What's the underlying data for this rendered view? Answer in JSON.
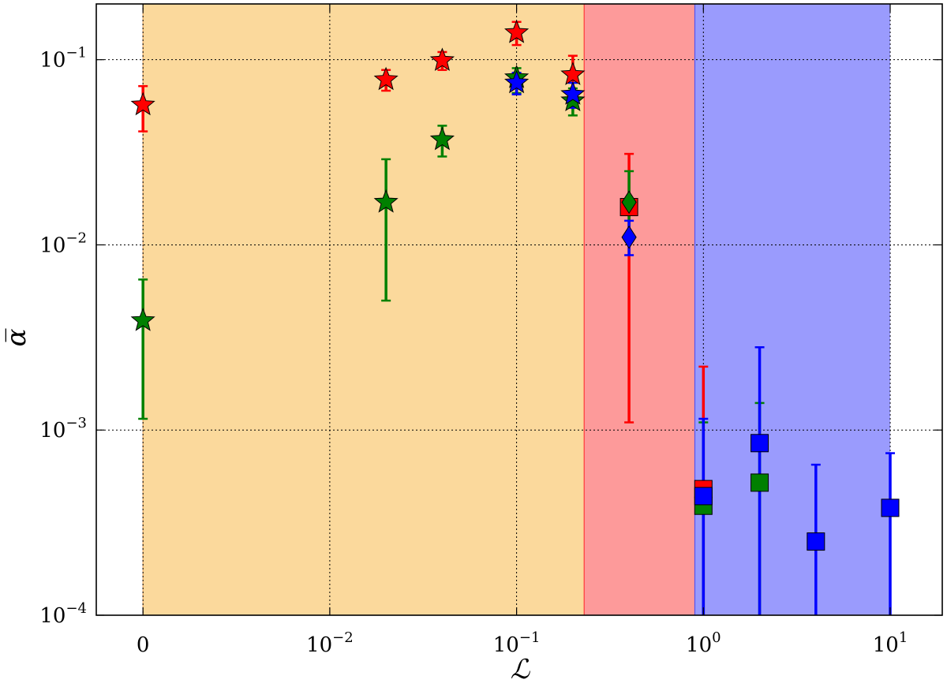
{
  "chart_data": {
    "type": "scatter",
    "title": "",
    "xlabel": "ℒ",
    "ylabel": "α̅",
    "x_scale": "symlog",
    "y_scale": "log",
    "xlim": [
      -0.0025,
      19
    ],
    "ylim": [
      0.0001,
      0.2
    ],
    "grid": true,
    "x_ticks": [
      {
        "value": 0,
        "label": "0",
        "exp": ""
      },
      {
        "value": 0.01,
        "label": "10",
        "exp": "−2"
      },
      {
        "value": 0.1,
        "label": "10",
        "exp": "−1"
      },
      {
        "value": 1,
        "label": "10",
        "exp": "0"
      },
      {
        "value": 10,
        "label": "10",
        "exp": "1"
      }
    ],
    "y_ticks": [
      {
        "value": 0.0001,
        "label": "10",
        "exp": "−4"
      },
      {
        "value": 0.001,
        "label": "10",
        "exp": "−3"
      },
      {
        "value": 0.01,
        "label": "10",
        "exp": "−2"
      },
      {
        "value": 0.1,
        "label": "10",
        "exp": "−1"
      }
    ],
    "regions": [
      {
        "from": 0,
        "to": 0.23,
        "color": "#fbd99c",
        "border": "#e8a860"
      },
      {
        "from": 0.23,
        "to": 0.9,
        "color": "#fd9a9a",
        "border": "#ff3a3a"
      },
      {
        "from": 0.9,
        "to": 10,
        "color": "#9a9bfd",
        "border": "#5555ee"
      }
    ],
    "series": [
      {
        "color": "#ff0000",
        "points": [
          {
            "x": 0,
            "y": 0.057,
            "lo": 0.041,
            "hi": 0.072,
            "marker": "star"
          },
          {
            "x": 0.02,
            "y": 0.078,
            "lo": 0.068,
            "hi": 0.088,
            "marker": "star"
          },
          {
            "x": 0.04,
            "y": 0.099,
            "lo": 0.088,
            "hi": 0.11,
            "marker": "star"
          },
          {
            "x": 0.1,
            "y": 0.14,
            "lo": 0.12,
            "hi": 0.16,
            "marker": "star"
          },
          {
            "x": 0.2,
            "y": 0.083,
            "lo": 0.065,
            "hi": 0.105,
            "marker": "star"
          },
          {
            "x": 0.4,
            "y": 0.016,
            "lo": 0.0011,
            "hi": 0.031,
            "marker": "square"
          },
          {
            "x": 1,
            "y": 0.00048,
            "lo": 0.0001,
            "hi": 0.0022,
            "marker": "square"
          }
        ]
      },
      {
        "color": "#008000",
        "points": [
          {
            "x": 0,
            "y": 0.0039,
            "lo": 0.00115,
            "hi": 0.0065,
            "marker": "star"
          },
          {
            "x": 0.02,
            "y": 0.017,
            "lo": 0.005,
            "hi": 0.029,
            "marker": "star"
          },
          {
            "x": 0.04,
            "y": 0.037,
            "lo": 0.03,
            "hi": 0.044,
            "marker": "star"
          },
          {
            "x": 0.1,
            "y": 0.08,
            "lo": 0.066,
            "hi": 0.09,
            "marker": "star"
          },
          {
            "x": 0.2,
            "y": 0.06,
            "lo": 0.05,
            "hi": 0.07,
            "marker": "star"
          },
          {
            "x": 0.4,
            "y": 0.017,
            "lo": 0.0105,
            "hi": 0.025,
            "marker": "diamond"
          },
          {
            "x": 1,
            "y": 0.00039,
            "lo": 0.0001,
            "hi": 0.0011,
            "marker": "square"
          },
          {
            "x": 2,
            "y": 0.00052,
            "lo": 0.0001,
            "hi": 0.0014,
            "marker": "square"
          }
        ]
      },
      {
        "color": "#0000ff",
        "points": [
          {
            "x": 0.1,
            "y": 0.075,
            "lo": 0.065,
            "hi": 0.085,
            "marker": "star"
          },
          {
            "x": 0.2,
            "y": 0.065,
            "lo": 0.055,
            "hi": 0.075,
            "marker": "star"
          },
          {
            "x": 0.4,
            "y": 0.011,
            "lo": 0.0088,
            "hi": 0.0135,
            "marker": "diamond"
          },
          {
            "x": 1,
            "y": 0.00044,
            "lo": 0.0001,
            "hi": 0.00115,
            "marker": "square"
          },
          {
            "x": 2,
            "y": 0.00085,
            "lo": 0.0001,
            "hi": 0.0028,
            "marker": "square"
          },
          {
            "x": 4,
            "y": 0.00025,
            "lo": 0.0001,
            "hi": 0.00065,
            "marker": "square"
          },
          {
            "x": 10,
            "y": 0.00038,
            "lo": 0.0001,
            "hi": 0.00075,
            "marker": "square"
          }
        ]
      }
    ]
  }
}
